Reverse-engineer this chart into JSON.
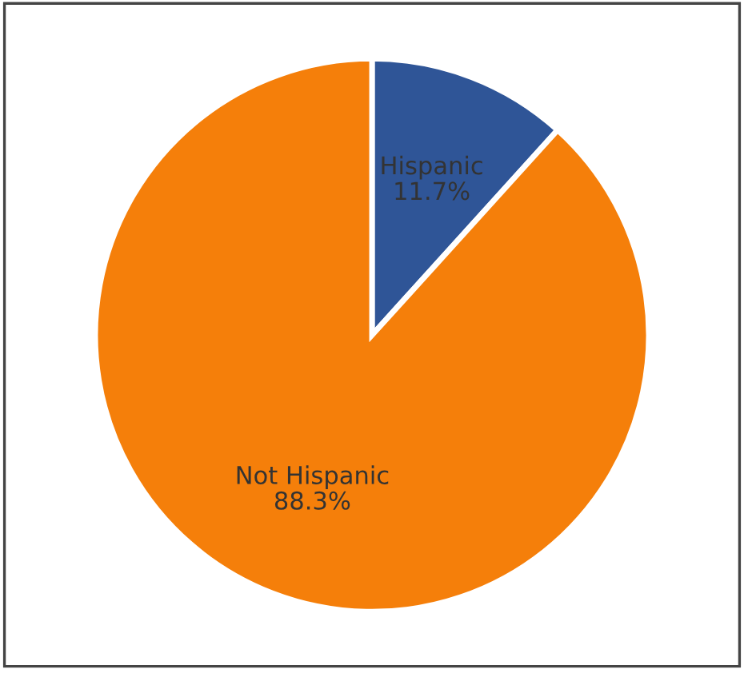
{
  "chart_data": {
    "type": "pie",
    "categories": [
      "Hispanic",
      "Not Hispanic"
    ],
    "values": [
      11.7,
      88.3
    ],
    "colors": [
      "#2f5597",
      "#f57f0a"
    ],
    "value_labels": [
      "11.7%",
      "88.3%"
    ],
    "legend": false
  }
}
